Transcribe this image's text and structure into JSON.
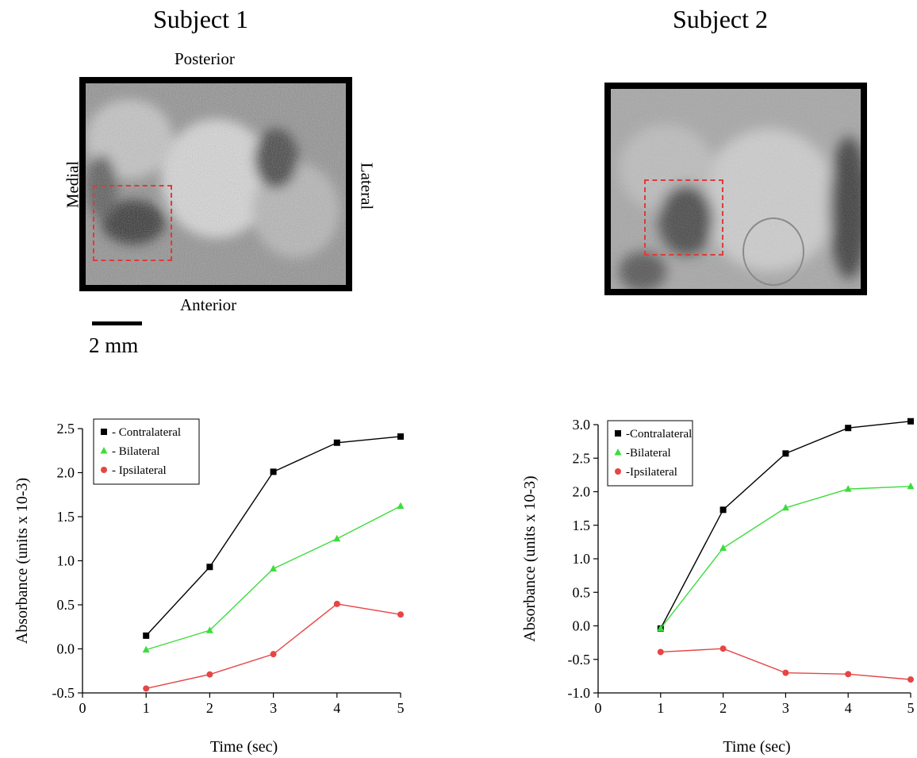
{
  "panels": [
    {
      "title": "Subject 1",
      "orientation": {
        "top": "Posterior",
        "bottom": "Anterior",
        "left": "Medial",
        "right": "Lateral"
      },
      "scale_bar_label": "2 mm"
    },
    {
      "title": "Subject 2"
    }
  ],
  "colors": {
    "contralateral": "#000000",
    "bilateral": "#3ddc3d",
    "ipsilateral": "#e64545",
    "roi_outline": "#e03a3a"
  },
  "chart_data": [
    {
      "type": "line",
      "xlabel": "Time (sec)",
      "ylabel": "Absorbance (units x 10-3)",
      "xlim": [
        0,
        5
      ],
      "ylim": [
        -0.5,
        2.5
      ],
      "x_ticks": [
        "0",
        "1",
        "2",
        "3",
        "4",
        "5"
      ],
      "y_ticks": [
        "-0.5",
        "0.0",
        "0.5",
        "1.0",
        "1.5",
        "2.0",
        "2.5"
      ],
      "y_tick_values": [
        -0.5,
        0,
        0.5,
        1.0,
        1.5,
        2.0,
        2.5
      ],
      "grid": false,
      "legend_position": "top-left",
      "x": [
        1,
        2,
        3,
        4,
        5
      ],
      "series": [
        {
          "name": "Contralateral",
          "legend_label": "- Contralateral",
          "marker": "square",
          "color": "#000000",
          "values": [
            0.15,
            0.93,
            2.01,
            2.34,
            2.41
          ]
        },
        {
          "name": "Bilateral",
          "legend_label": "- Bilateral",
          "marker": "triangle",
          "color": "#3ddc3d",
          "values": [
            -0.01,
            0.21,
            0.91,
            1.25,
            1.62
          ]
        },
        {
          "name": "Ipsilateral",
          "legend_label": "- Ipsilateral",
          "marker": "circle",
          "color": "#e64545",
          "values": [
            -0.45,
            -0.29,
            -0.06,
            0.51,
            0.39
          ]
        }
      ]
    },
    {
      "type": "line",
      "xlabel": "Time (sec)",
      "ylabel": "Absorbance (units x 10-3)",
      "xlim": [
        0,
        5
      ],
      "ylim": [
        -1.0,
        3.0
      ],
      "x_ticks": [
        "0",
        "1",
        "2",
        "3",
        "4",
        "5"
      ],
      "y_ticks": [
        "-1.0",
        "-0.5",
        "0.0",
        "0.5",
        "1.0",
        "1.5",
        "2.0",
        "2.5",
        "3.0"
      ],
      "y_tick_values": [
        -1.0,
        -0.5,
        0,
        0.5,
        1.0,
        1.5,
        2.0,
        2.5,
        3.0
      ],
      "grid": false,
      "legend_position": "top-left",
      "x": [
        1,
        2,
        3,
        4,
        5
      ],
      "series": [
        {
          "name": "Contralateral",
          "legend_label": "-Contralateral",
          "marker": "square",
          "color": "#000000",
          "values": [
            -0.04,
            1.73,
            2.57,
            2.95,
            3.05
          ]
        },
        {
          "name": "Bilateral",
          "legend_label": "-Bilateral",
          "marker": "triangle",
          "color": "#3ddc3d",
          "values": [
            -0.04,
            1.16,
            1.76,
            2.04,
            2.08
          ]
        },
        {
          "name": "Ipsilateral",
          "legend_label": "-Ipsilateral",
          "marker": "circle",
          "color": "#e64545",
          "values": [
            -0.39,
            -0.34,
            -0.7,
            -0.72,
            -0.8
          ]
        }
      ]
    }
  ]
}
